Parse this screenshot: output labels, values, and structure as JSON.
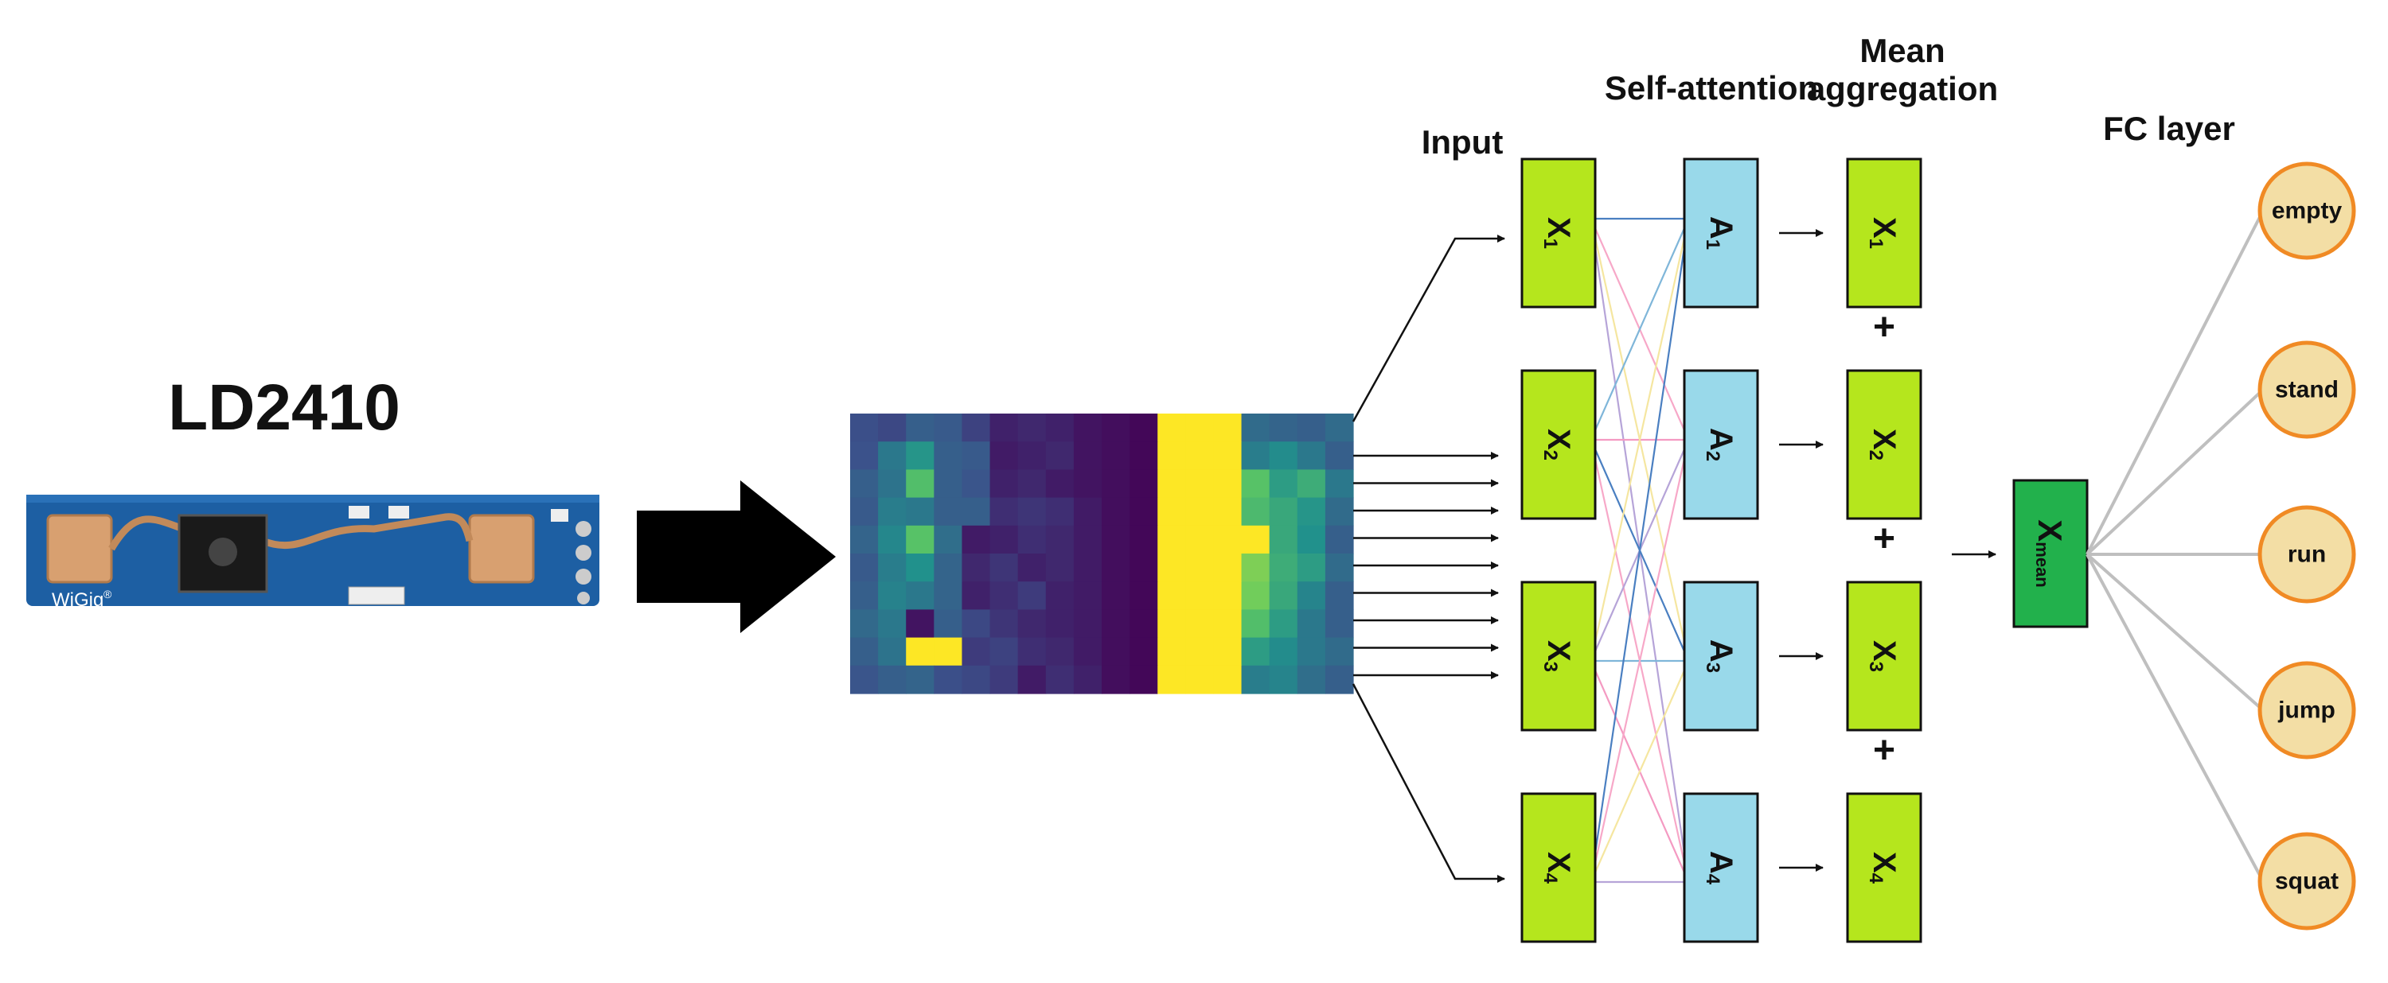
{
  "sensor": {
    "title": "LD2410",
    "board_logo": "WiGig",
    "board_logo_mark": "®"
  },
  "labels": {
    "input": "Input",
    "self_attention": "Self-attention",
    "mean_aggregation_line1": "Mean",
    "mean_aggregation_line2": "aggregation",
    "fc_layer": "FC layer",
    "plus": "+"
  },
  "input_nodes": [
    {
      "base": "X",
      "sub": "1"
    },
    {
      "base": "X",
      "sub": "2"
    },
    {
      "base": "X",
      "sub": "3"
    },
    {
      "base": "X",
      "sub": "4"
    }
  ],
  "attention_nodes": [
    {
      "base": "A",
      "sub": "1"
    },
    {
      "base": "A",
      "sub": "2"
    },
    {
      "base": "A",
      "sub": "3"
    },
    {
      "base": "A",
      "sub": "4"
    }
  ],
  "mean_nodes": [
    {
      "base": "X",
      "sub": "1"
    },
    {
      "base": "X",
      "sub": "2"
    },
    {
      "base": "X",
      "sub": "3"
    },
    {
      "base": "X",
      "sub": "4"
    }
  ],
  "mean_result": {
    "base": "X",
    "sub": "mean"
  },
  "output_classes": [
    "empty",
    "stand",
    "run",
    "jump",
    "squat"
  ],
  "colors": {
    "input_node": "#b5e61d",
    "attention_node": "#99d9ea",
    "mean_result_node": "#22b14c",
    "output_node_fill": "#f3dea5",
    "output_node_stroke": "#f08a24",
    "board": "#1d5fa3",
    "board_pad": "#d8a070",
    "fc_edge": "#bfbfbf"
  },
  "heatmap": {
    "colormap": "viridis",
    "rows": 10,
    "cols": 18,
    "values": [
      [
        0.24,
        0.22,
        0.3,
        0.28,
        0.2,
        0.1,
        0.12,
        0.1,
        0.06,
        0.04,
        0.02,
        1,
        1,
        1,
        0.35,
        0.32,
        0.3,
        0.35
      ],
      [
        0.25,
        0.4,
        0.52,
        0.3,
        0.28,
        0.08,
        0.1,
        0.12,
        0.06,
        0.04,
        0.02,
        1,
        1,
        1,
        0.42,
        0.48,
        0.4,
        0.3
      ],
      [
        0.3,
        0.38,
        0.7,
        0.3,
        0.26,
        0.1,
        0.12,
        0.08,
        0.06,
        0.04,
        0.02,
        1,
        1,
        1,
        0.72,
        0.55,
        0.62,
        0.4
      ],
      [
        0.28,
        0.42,
        0.4,
        0.3,
        0.3,
        0.14,
        0.16,
        0.14,
        0.08,
        0.04,
        0.02,
        1,
        1,
        1,
        0.68,
        0.6,
        0.52,
        0.35
      ],
      [
        0.32,
        0.46,
        0.72,
        0.36,
        0.08,
        0.1,
        0.14,
        0.12,
        0.08,
        0.04,
        0.02,
        1,
        1,
        1,
        1,
        0.6,
        0.5,
        0.3
      ],
      [
        0.28,
        0.42,
        0.5,
        0.32,
        0.12,
        0.16,
        0.1,
        0.12,
        0.08,
        0.04,
        0.02,
        1,
        1,
        1,
        0.8,
        0.62,
        0.55,
        0.35
      ],
      [
        0.3,
        0.44,
        0.4,
        0.32,
        0.1,
        0.14,
        0.18,
        0.1,
        0.08,
        0.04,
        0.02,
        1,
        1,
        1,
        0.78,
        0.6,
        0.45,
        0.3
      ],
      [
        0.34,
        0.4,
        0.06,
        0.3,
        0.22,
        0.16,
        0.12,
        0.1,
        0.08,
        0.04,
        0.02,
        1,
        1,
        1,
        0.7,
        0.55,
        0.4,
        0.3
      ],
      [
        0.3,
        0.38,
        1.0,
        1.0,
        0.18,
        0.2,
        0.14,
        0.12,
        0.08,
        0.04,
        0.02,
        1,
        1,
        1,
        0.55,
        0.48,
        0.4,
        0.35
      ],
      [
        0.26,
        0.3,
        0.32,
        0.24,
        0.22,
        0.18,
        0.08,
        0.14,
        0.1,
        0.04,
        0.02,
        1,
        1,
        1,
        0.42,
        0.45,
        0.36,
        0.3
      ]
    ]
  }
}
